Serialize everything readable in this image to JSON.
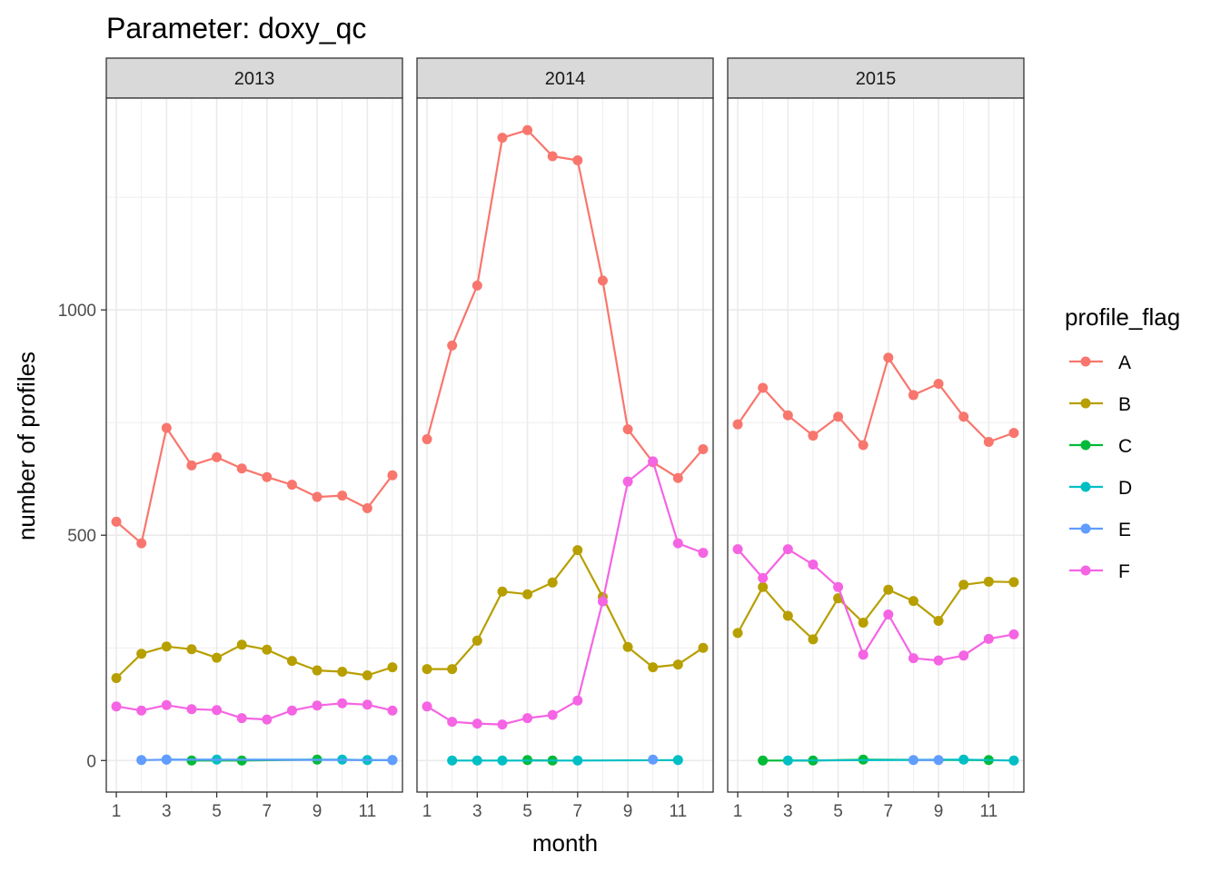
{
  "chart_data": {
    "type": "line",
    "title": "Parameter:  doxy_qc",
    "xlabel": "month",
    "ylabel": "number of profiles",
    "xlim": [
      0.6,
      12.4
    ],
    "ylim": [
      -70,
      1470
    ],
    "x_ticks": [
      1,
      3,
      5,
      7,
      9,
      11
    ],
    "x_minor_ticks": [
      2,
      4,
      6,
      8,
      10,
      12
    ],
    "y_ticks": [
      0,
      500,
      1000
    ],
    "y_minor_ticks": [
      250,
      750,
      1250
    ],
    "grid": true,
    "legend": {
      "title": "profile_flag",
      "position": "right"
    },
    "facets": [
      {
        "label": "2013",
        "series": [
          {
            "name": "A",
            "x": [
              1,
              2,
              3,
              4,
              5,
              6,
              7,
              8,
              9,
              10,
              11,
              12
            ],
            "values": [
              530,
              482,
              738,
              655,
              673,
              648,
              629,
              612,
              585,
              588,
              560,
              633
            ]
          },
          {
            "name": "B",
            "x": [
              1,
              2,
              3,
              4,
              5,
              6,
              7,
              8,
              9,
              10,
              11,
              12
            ],
            "values": [
              183,
              237,
              253,
              247,
              228,
              257,
              246,
              221,
              200,
              197,
              189,
              207
            ]
          },
          {
            "name": "C",
            "x": [
              4,
              6,
              9
            ],
            "values": [
              0,
              0,
              2
            ]
          },
          {
            "name": "D",
            "x": [
              3,
              5,
              10,
              11,
              12
            ],
            "values": [
              2,
              2,
              2,
              1,
              1
            ]
          },
          {
            "name": "E",
            "x": [
              2,
              3,
              12
            ],
            "values": [
              1,
              2,
              1
            ]
          },
          {
            "name": "F",
            "x": [
              1,
              2,
              3,
              4,
              5,
              6,
              7,
              8,
              9,
              10,
              11,
              12
            ],
            "values": [
              120,
              111,
              123,
              114,
              112,
              94,
              91,
              111,
              122,
              127,
              124,
              111
            ]
          }
        ]
      },
      {
        "label": "2014",
        "series": [
          {
            "name": "A",
            "x": [
              1,
              2,
              3,
              4,
              5,
              6,
              7,
              8,
              9,
              10,
              11,
              12
            ],
            "values": [
              713,
              921,
              1054,
              1382,
              1399,
              1341,
              1332,
              1065,
              735,
              662,
              627,
              691
            ]
          },
          {
            "name": "B",
            "x": [
              1,
              2,
              3,
              4,
              5,
              6,
              7,
              8,
              9,
              10,
              11,
              12
            ],
            "values": [
              203,
              203,
              266,
              375,
              369,
              395,
              467,
              363,
              252,
              207,
              213,
              250
            ]
          },
          {
            "name": "C",
            "x": [
              5,
              6
            ],
            "values": [
              1,
              0
            ]
          },
          {
            "name": "D",
            "x": [
              2,
              3,
              4,
              7,
              11
            ],
            "values": [
              0,
              0,
              0,
              0,
              1
            ]
          },
          {
            "name": "E",
            "x": [
              10
            ],
            "values": [
              2
            ]
          },
          {
            "name": "F",
            "x": [
              1,
              2,
              3,
              4,
              5,
              6,
              7,
              8,
              9,
              10,
              11,
              12
            ],
            "values": [
              120,
              86,
              82,
              80,
              94,
              101,
              133,
              353,
              619,
              664,
              482,
              461
            ]
          }
        ]
      },
      {
        "label": "2015",
        "series": [
          {
            "name": "A",
            "x": [
              1,
              2,
              3,
              4,
              5,
              6,
              7,
              8,
              9,
              10,
              11,
              12
            ],
            "values": [
              746,
              827,
              766,
              721,
              763,
              700,
              894,
              811,
              836,
              763,
              707,
              727
            ]
          },
          {
            "name": "B",
            "x": [
              1,
              2,
              3,
              4,
              5,
              6,
              7,
              8,
              9,
              10,
              11,
              12
            ],
            "values": [
              283,
              385,
              321,
              269,
              360,
              306,
              379,
              354,
              310,
              390,
              397,
              396
            ]
          },
          {
            "name": "C",
            "x": [
              2,
              4,
              6,
              11
            ],
            "values": [
              0,
              0,
              2,
              1
            ]
          },
          {
            "name": "D",
            "x": [
              3,
              10,
              12
            ],
            "values": [
              0,
              2,
              0
            ]
          },
          {
            "name": "E",
            "x": [
              8,
              9
            ],
            "values": [
              1,
              1
            ]
          },
          {
            "name": "F",
            "x": [
              1,
              2,
              3,
              4,
              5,
              6,
              7,
              8,
              9,
              10,
              11,
              12
            ],
            "values": [
              469,
              405,
              469,
              435,
              385,
              235,
              324,
              227,
              222,
              233,
              270,
              280
            ]
          }
        ]
      }
    ],
    "colors": {
      "A": "#F8766D",
      "B": "#B79F00",
      "C": "#00BA38",
      "D": "#00BFC4",
      "E": "#619CFF",
      "F": "#F564E3"
    }
  }
}
